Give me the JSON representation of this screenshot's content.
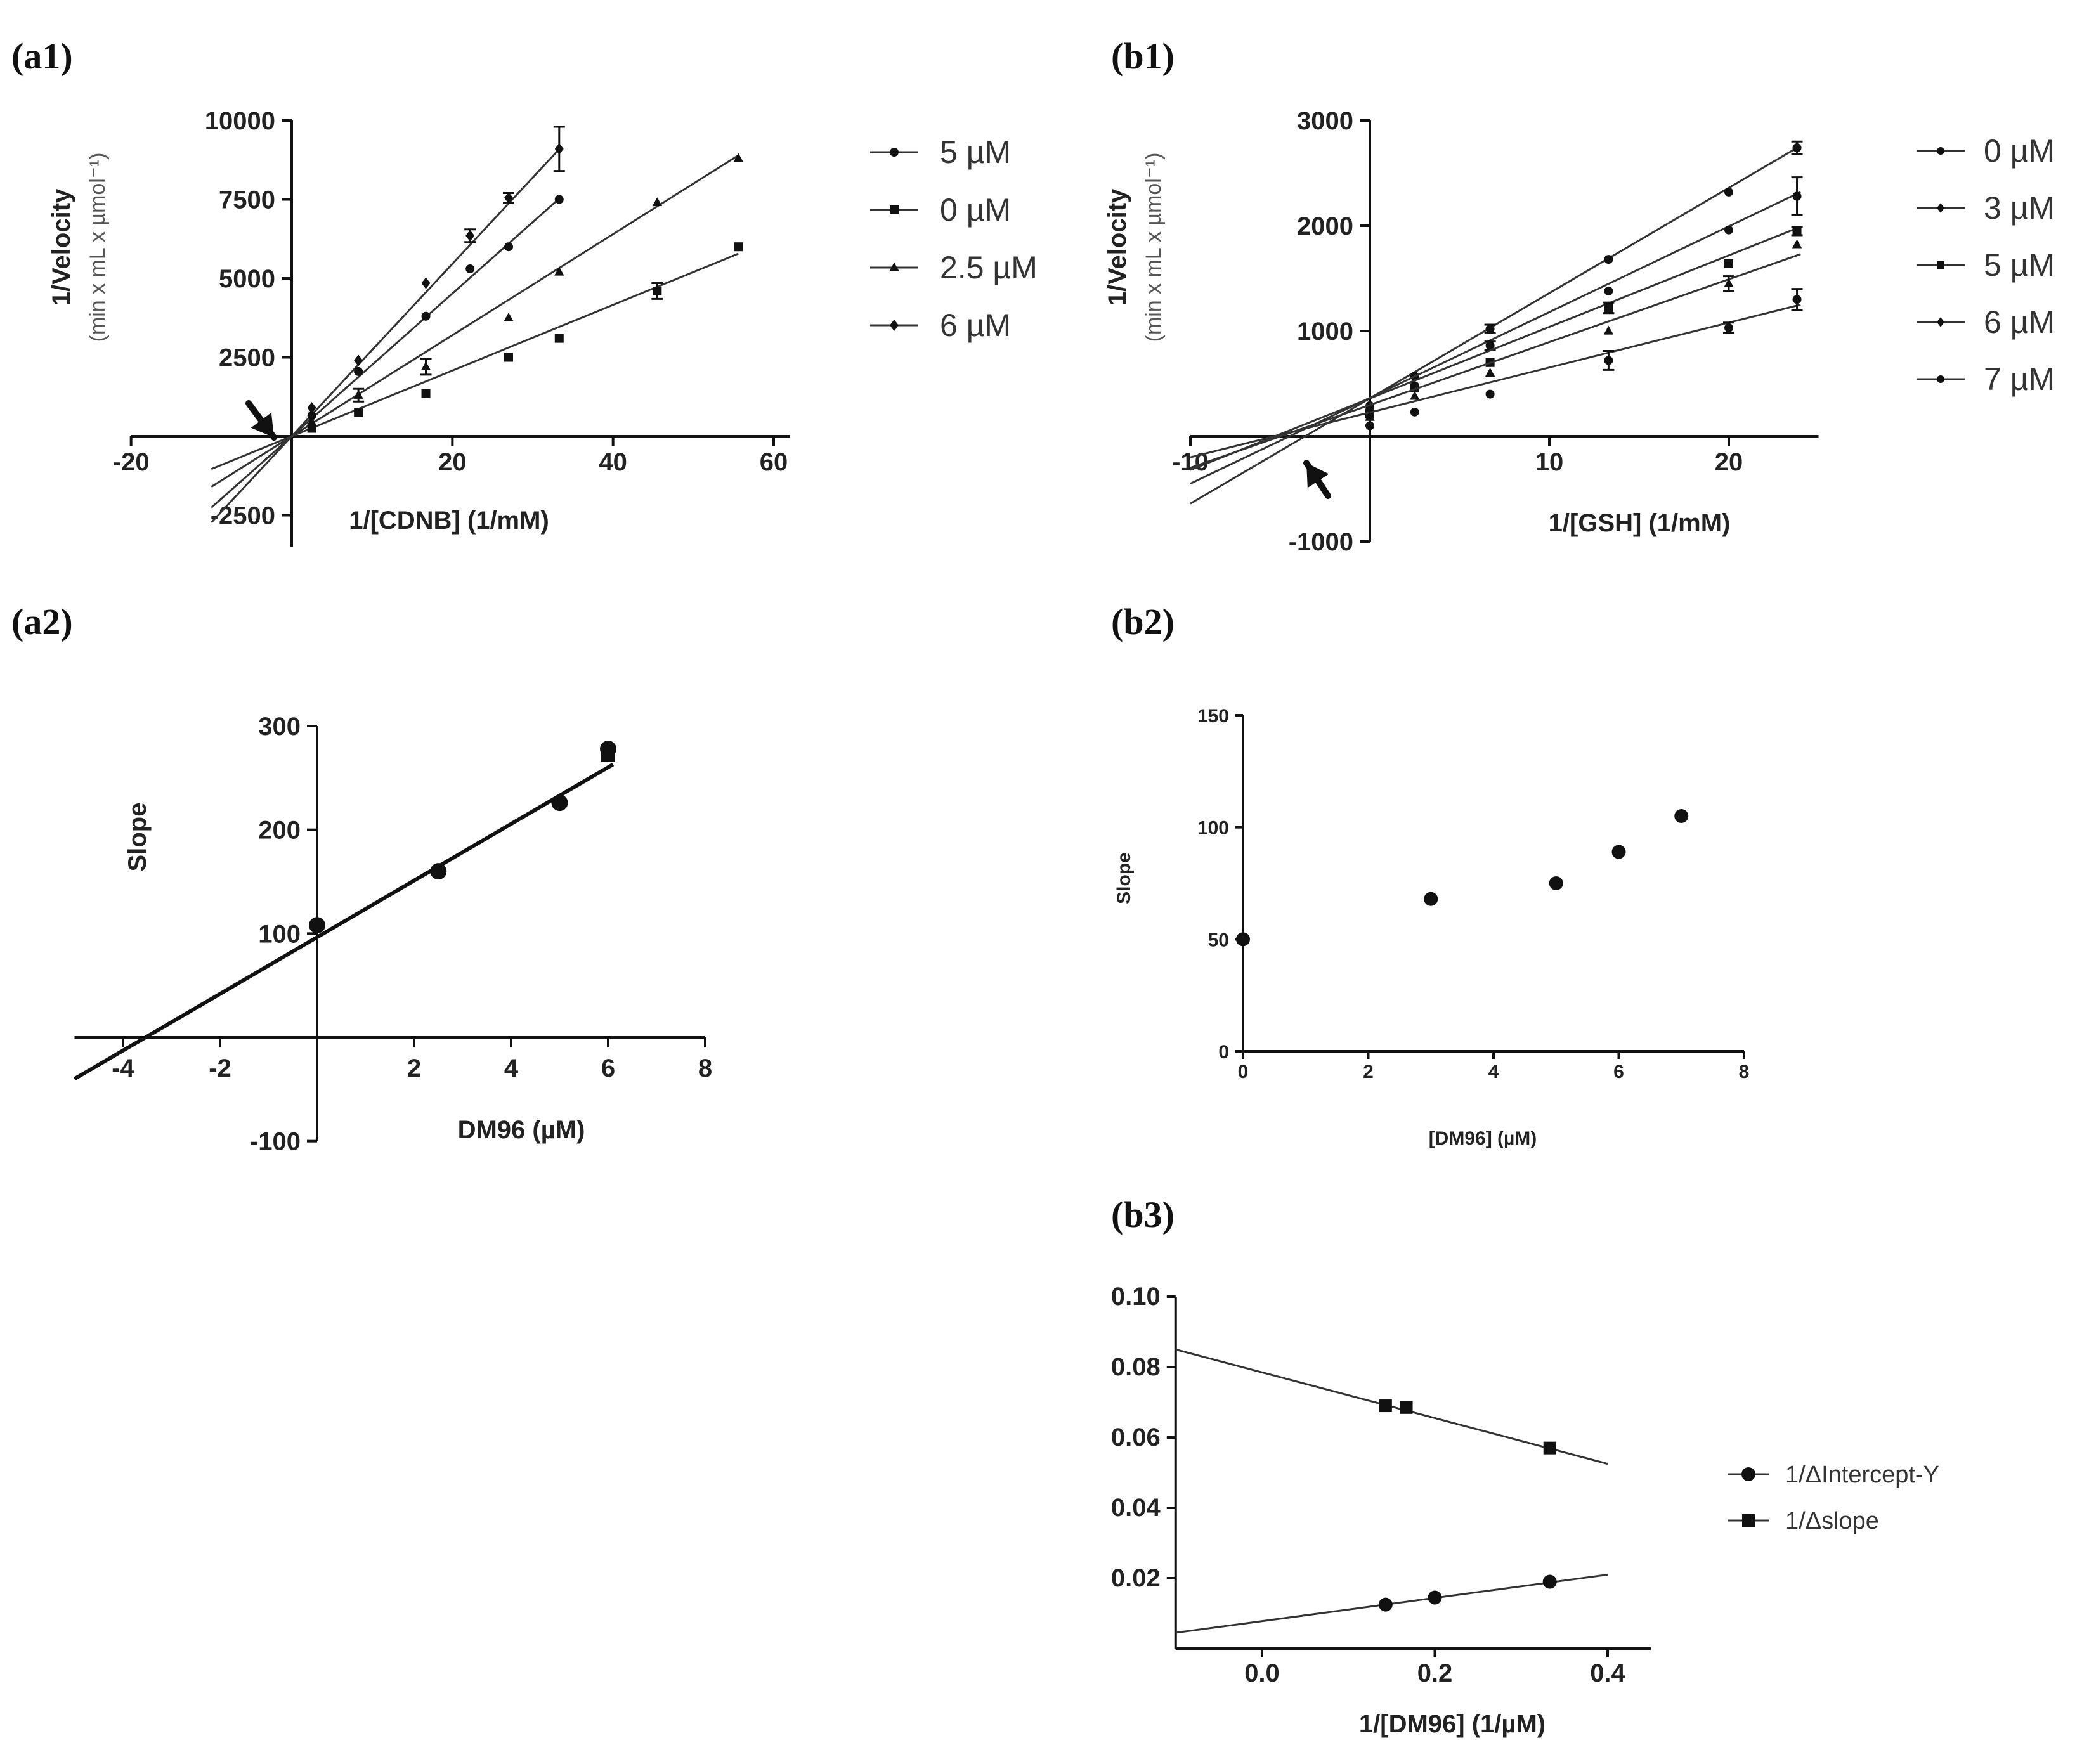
{
  "chart_data": [
    {
      "id": "a1",
      "panel_label": "(a1)",
      "type": "scatter",
      "xlabel": "1/[CDNB] (1/mM)",
      "ylabel": "1/Velocity",
      "ylabel2": "(min x mL x µmol⁻¹)",
      "xlim": [
        -20,
        60
      ],
      "ylim": [
        -3500,
        10000
      ],
      "xticks": [
        -20,
        0,
        20,
        40,
        60
      ],
      "xtick_labels": [
        "-20",
        "",
        "20",
        "40",
        "60"
      ],
      "yticks": [
        -2500,
        0,
        2500,
        5000,
        7500,
        10000
      ],
      "ytick_labels": [
        "-2500",
        "",
        "2500",
        "5000",
        "7500",
        "10000"
      ],
      "legend": [
        "5 µM",
        "0 µM",
        "2.5 µM",
        "6 µM"
      ],
      "series": [
        {
          "name": "6 µM",
          "marker": "diamond",
          "x": [
            2.5,
            8.3,
            16.7,
            22.2,
            27,
            33.3
          ],
          "y": [
            900,
            2400,
            4850,
            6350,
            7550,
            9100
          ],
          "err": [
            0,
            0,
            0,
            200,
            150,
            700
          ],
          "fit_slope": 273,
          "fit_x": [
            -10,
            33.3
          ]
        },
        {
          "name": "5 µM",
          "marker": "circle",
          "x": [
            2.5,
            8.3,
            16.7,
            22.2,
            27,
            33.3
          ],
          "y": [
            650,
            2050,
            3800,
            5300,
            6000,
            7500
          ],
          "err": [
            0,
            0,
            0,
            0,
            0,
            0
          ],
          "fit_slope": 226,
          "fit_x": [
            -10,
            33.3
          ]
        },
        {
          "name": "2.5 µM",
          "marker": "triangle",
          "x": [
            2.5,
            8.3,
            16.7,
            27,
            33.3,
            45.5,
            55.6
          ],
          "y": [
            450,
            1300,
            2200,
            3750,
            5200,
            7400,
            8800
          ],
          "err": [
            0,
            200,
            250,
            0,
            0,
            0,
            0
          ],
          "fit_slope": 160,
          "fit_x": [
            -10,
            55.6
          ]
        },
        {
          "name": "0 µM",
          "marker": "square",
          "x": [
            2.5,
            8.3,
            16.7,
            27,
            33.3,
            45.5,
            55.6
          ],
          "y": [
            250,
            750,
            1350,
            2500,
            3100,
            4600,
            6000
          ],
          "err": [
            0,
            0,
            0,
            0,
            0,
            250,
            0
          ],
          "fit_slope": 104,
          "fit_x": [
            -10,
            55.6
          ]
        }
      ],
      "annotation": "arrow pointing at common intersection near the origin"
    },
    {
      "id": "b1",
      "panel_label": "(b1)",
      "type": "scatter",
      "xlabel": "1/[GSH] (1/mM)",
      "ylabel": "1/Velocity",
      "ylabel2": "(min x mL x µmol⁻¹)",
      "xlim": [
        -10,
        25
      ],
      "ylim": [
        -1000,
        3000
      ],
      "xticks": [
        -10,
        0,
        10,
        20
      ],
      "xtick_labels": [
        "-10",
        "",
        "10",
        "20"
      ],
      "yticks": [
        -1000,
        0,
        1000,
        2000,
        3000
      ],
      "ytick_labels": [
        "-1000",
        "",
        "1000",
        "2000",
        "3000"
      ],
      "legend": [
        "0 µM",
        "3 µM",
        "5 µM",
        "6 µM",
        "7 µM"
      ],
      "series": [
        {
          "name": "7 µM",
          "marker": "circle",
          "x": [
            0,
            2.5,
            6.7,
            13.3,
            20,
            23.8
          ],
          "y": [
            290,
            570,
            1020,
            1680,
            2320,
            2740
          ],
          "err": [
            0,
            0,
            40,
            0,
            0,
            60
          ],
          "fit": [
            -10,
            -640,
            24,
            2760
          ]
        },
        {
          "name": "6 µM",
          "marker": "circle",
          "x": [
            0,
            2.5,
            6.7,
            13.3,
            20,
            23.8
          ],
          "y": [
            250,
            480,
            860,
            1380,
            1960,
            2280
          ],
          "err": [
            0,
            0,
            40,
            0,
            0,
            180
          ],
          "fit": [
            -10,
            -450,
            24,
            2320
          ]
        },
        {
          "name": "5 µM",
          "marker": "square",
          "x": [
            0,
            2.5,
            6.7,
            13.3,
            20,
            23.8
          ],
          "y": [
            210,
            460,
            700,
            1220,
            1640,
            1950
          ],
          "err": [
            0,
            0,
            0,
            50,
            0,
            40
          ],
          "fit": [
            -10,
            -320,
            24,
            1990
          ]
        },
        {
          "name": "3 µM",
          "marker": "triangle",
          "x": [
            0,
            2.5,
            6.7,
            13.3,
            20,
            23.8
          ],
          "y": [
            180,
            380,
            600,
            1000,
            1450,
            1820
          ],
          "err": [
            0,
            0,
            0,
            0,
            70,
            0
          ],
          "fit": [
            -10,
            -300,
            24,
            1730
          ]
        },
        {
          "name": "0 µM",
          "marker": "circle",
          "x": [
            0,
            2.5,
            6.7,
            13.3,
            20,
            23.8
          ],
          "y": [
            100,
            230,
            400,
            720,
            1030,
            1300
          ],
          "err": [
            0,
            0,
            0,
            90,
            50,
            100
          ],
          "fit": [
            -10,
            -200,
            24,
            1250
          ]
        }
      ],
      "annotation": "arrow pointing at common intersection left of the y-axis"
    },
    {
      "id": "a2",
      "panel_label": "(a2)",
      "type": "scatter",
      "xlabel": "DM96 (µM)",
      "ylabel": "Slope",
      "xlim": [
        -5,
        8
      ],
      "ylim": [
        -100,
        300
      ],
      "xticks": [
        -4,
        -2,
        2,
        4,
        6,
        8
      ],
      "xtick_labels": [
        "-4",
        "-2",
        "2",
        "4",
        "6",
        "8"
      ],
      "yticks": [
        -100,
        100,
        200,
        300
      ],
      "ytick_labels": [
        "-100",
        "100",
        "200",
        "300"
      ],
      "points": {
        "x": [
          0,
          2.5,
          5,
          6,
          6
        ],
        "y": [
          108,
          160,
          226,
          272,
          278
        ]
      },
      "fit": {
        "x": [
          -5,
          6.1
        ],
        "y": [
          -40,
          263
        ]
      }
    },
    {
      "id": "b2",
      "panel_label": "(b2)",
      "type": "scatter",
      "xlabel": "[DM96] (µM)",
      "ylabel": "Slope",
      "xlim": [
        0,
        8
      ],
      "ylim": [
        0,
        150
      ],
      "xticks": [
        0,
        2,
        4,
        6,
        8
      ],
      "xtick_labels": [
        "0",
        "2",
        "4",
        "6",
        "8"
      ],
      "yticks": [
        0,
        50,
        100,
        150
      ],
      "ytick_labels": [
        "0",
        "50",
        "100",
        "150"
      ],
      "points": {
        "x": [
          0,
          3,
          5,
          6,
          7
        ],
        "y": [
          50,
          68,
          75,
          89,
          105
        ]
      }
    },
    {
      "id": "b3",
      "panel_label": "(b3)",
      "type": "scatter",
      "xlabel": "1/[DM96] (1/µM)",
      "ylabel": "",
      "xlim": [
        -0.1,
        0.45
      ],
      "ylim": [
        0,
        0.1
      ],
      "xticks": [
        0,
        0.2,
        0.4
      ],
      "xtick_labels": [
        "0.0",
        "0.2",
        "0.4"
      ],
      "yticks": [
        0.02,
        0.04,
        0.06,
        0.08,
        0.1
      ],
      "ytick_labels": [
        "0.02",
        "0.04",
        "0.06",
        "0.08",
        "0.10"
      ],
      "legend": [
        "1/ΔIntercept-Y",
        "1/Δslope"
      ],
      "series": [
        {
          "name": "1/ΔIntercept-Y",
          "marker": "circle",
          "x": [
            0.143,
            0.2,
            0.333
          ],
          "y": [
            0.0125,
            0.0145,
            0.019
          ],
          "fit": [
            -0.1,
            0.0045,
            0.4,
            0.021
          ]
        },
        {
          "name": "1/Δslope",
          "marker": "square",
          "x": [
            0.143,
            0.167,
            0.333
          ],
          "y": [
            0.069,
            0.0685,
            0.057
          ],
          "fit": [
            -0.1,
            0.085,
            0.4,
            0.0525
          ]
        }
      ]
    }
  ],
  "colors": {
    "ink": "#111111",
    "line": "#333333",
    "label": "#222222",
    "muted": "#555555"
  }
}
